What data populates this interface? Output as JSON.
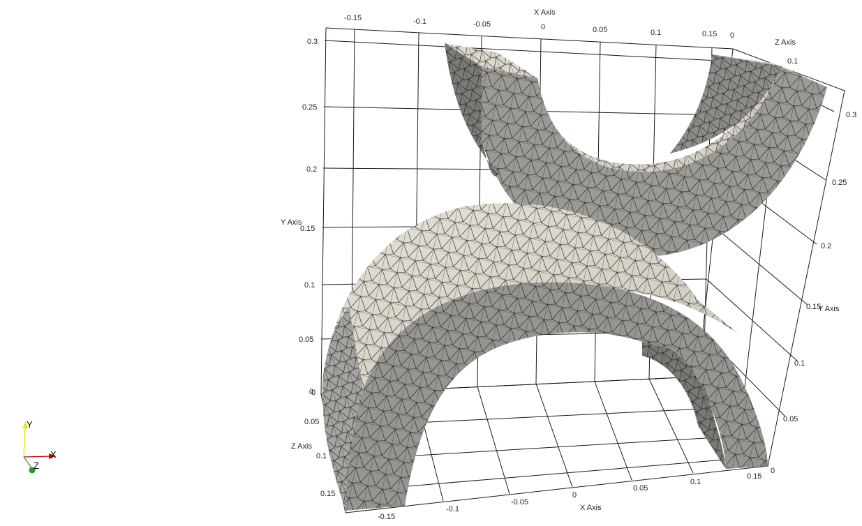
{
  "viewport": {
    "background": "#ffffff",
    "grid_color": "#1a1a1a",
    "mesh_colors": {
      "light_surface": "#d8d4c8",
      "mid_surface": "#b8b5ad",
      "dark_surface": "#8a8987",
      "edge": "#1b1b1b"
    }
  },
  "cube_axes": {
    "x_title_top": "X Axis",
    "x_title_bottom": "X Axis",
    "y_title_left": "Y Axis",
    "y_title_right": "Y Axis",
    "z_title_top": "Z Axis",
    "z_title_left": "Z Axis",
    "x_top_ticks": [
      "-0.15",
      "-0.1",
      "-0.05",
      "0",
      "0.05",
      "0.1",
      "0.15"
    ],
    "x_bottom_ticks": [
      "-0.15",
      "-0.1",
      "-0.05",
      "0",
      "0.05",
      "0.1",
      "0.15"
    ],
    "y_left_ticks": [
      "0.3",
      "0.25",
      "0.2",
      "0.15",
      "0.1",
      "0.05",
      "0"
    ],
    "y_right_ticks": [
      "0.3",
      "0.25",
      "0.2",
      "0.15",
      "0.1",
      "0.05",
      "0"
    ],
    "z_top_ticks": [
      "0",
      "0.1"
    ],
    "z_left_ticks": [
      "0",
      "0.05",
      "0.1",
      "0.15"
    ]
  },
  "orientation_widget": {
    "x_label": "X",
    "y_label": "Y",
    "z_label": "Z",
    "x_color": "#c40000",
    "y_color": "#e6e600",
    "z_color": "#20a020"
  }
}
